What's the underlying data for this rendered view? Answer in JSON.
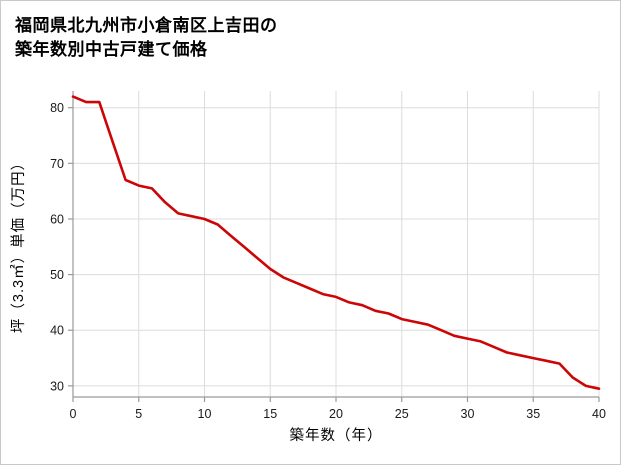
{
  "title_line1": "福岡県北九州市小倉南区上吉田の",
  "title_line2": "築年数別中古戸建て価格",
  "chart_data": {
    "type": "line",
    "title": "福岡県北九州市小倉南区上吉田の築年数別中古戸建て価格",
    "xlabel": "築年数（年）",
    "ylabel": "坪（3.3㎡）単価（万円）",
    "x": [
      0,
      1,
      2,
      3,
      4,
      5,
      6,
      7,
      8,
      9,
      10,
      11,
      12,
      13,
      14,
      15,
      16,
      17,
      18,
      19,
      20,
      21,
      22,
      23,
      24,
      25,
      26,
      27,
      28,
      29,
      30,
      31,
      32,
      33,
      34,
      35,
      36,
      37,
      38,
      39,
      40
    ],
    "values": [
      82,
      81,
      81,
      74,
      67,
      66,
      65.5,
      63,
      61,
      60.5,
      60,
      59,
      57,
      55,
      53,
      51,
      49.5,
      48.5,
      47.5,
      46.5,
      46,
      45,
      44.5,
      43.5,
      43,
      42,
      41.5,
      41,
      40,
      39,
      38.5,
      38,
      37,
      36,
      35.5,
      35,
      34.5,
      34,
      31.5,
      30,
      29.5
    ],
    "xlim": [
      0,
      40
    ],
    "ylim": [
      28,
      83
    ],
    "xticks": [
      0,
      5,
      10,
      15,
      20,
      25,
      30,
      35,
      40
    ],
    "yticks": [
      30,
      40,
      50,
      60,
      70,
      80
    ],
    "grid": true,
    "legend": "none",
    "line_color": "#cc0606",
    "grid_color": "#dcdcdc",
    "axis_color": "#9a9a9a",
    "background_color": "#ffffff"
  }
}
